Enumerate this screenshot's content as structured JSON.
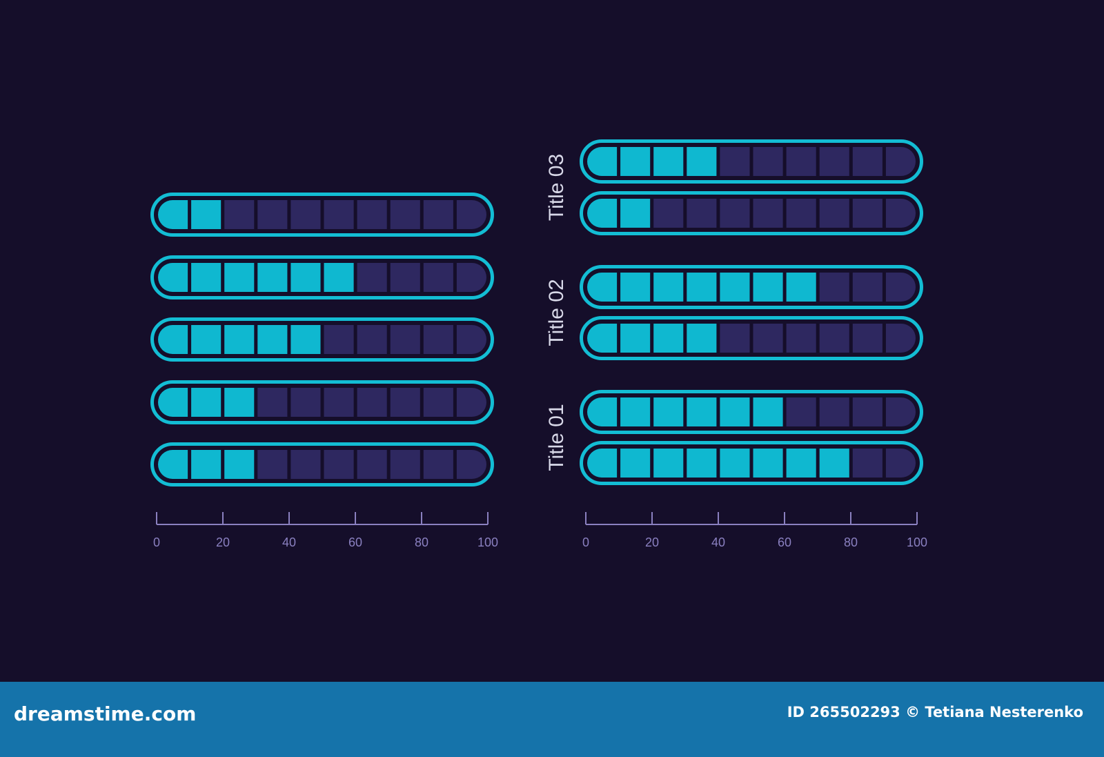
{
  "colors": {
    "background": "#150e2a",
    "filled": "#0fb8d0",
    "empty": "#2e2860",
    "outline": "#13bdd4",
    "axis": "#8a80c0",
    "title": "#d8d8e8"
  },
  "chart_data": [
    {
      "type": "bar",
      "orientation": "horizontal",
      "style": "segmented progress bars",
      "segments": 10,
      "values": [
        20,
        60,
        50,
        30,
        30
      ],
      "xlim": [
        0,
        100
      ],
      "ticks": [
        "0",
        "20",
        "40",
        "60",
        "80",
        "100"
      ]
    },
    {
      "type": "bar",
      "orientation": "horizontal",
      "style": "segmented progress bars",
      "segments": 10,
      "groups": [
        {
          "name": "Title 03",
          "values": [
            40,
            20
          ]
        },
        {
          "name": "Title 02",
          "values": [
            70,
            40
          ]
        },
        {
          "name": "Title 01",
          "values": [
            60,
            80
          ]
        }
      ],
      "xlim": [
        0,
        100
      ],
      "ticks": [
        "0",
        "20",
        "40",
        "60",
        "80",
        "100"
      ]
    }
  ],
  "footer": {
    "brand": "dreamstime.com",
    "credit": "ID 265502293 © Tetiana Nesterenko"
  }
}
